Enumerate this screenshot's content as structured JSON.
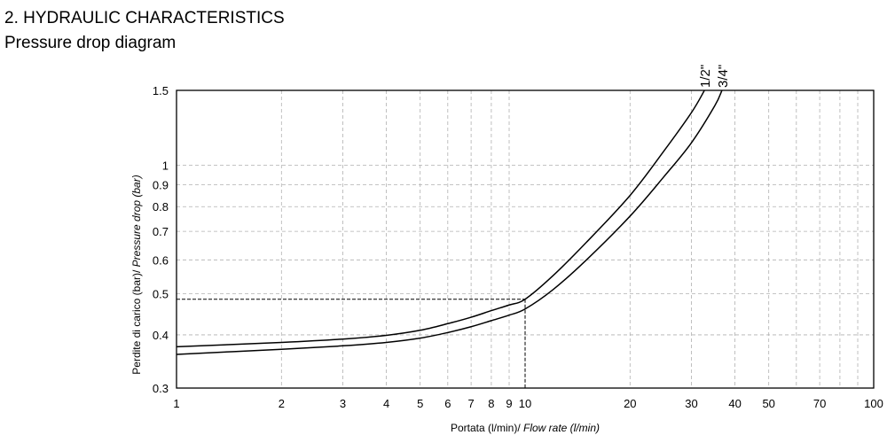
{
  "header": {
    "heading": "2. HYDRAULIC CHARACTERISTICS",
    "subheading": "Pressure drop diagram"
  },
  "chart_data": {
    "type": "line",
    "xlabel_plain": "Portata (l/min)/",
    "xlabel_italic": "Flow rate (l/min)",
    "ylabel_plain": "Perdite di carico (bar)/",
    "ylabel_italic": "Pressure drop (bar)",
    "x_scale": "log",
    "y_scale": "log",
    "xlim": [
      1,
      100
    ],
    "ylim": [
      0.3,
      1.5
    ],
    "x_ticks": [
      1,
      2,
      3,
      4,
      5,
      6,
      7,
      8,
      9,
      10,
      20,
      30,
      40,
      50,
      70,
      100
    ],
    "y_ticks": [
      0.3,
      0.4,
      0.5,
      0.6,
      0.7,
      0.8,
      0.9,
      1,
      1.5
    ],
    "x_ticks_with_gridlines": [
      2,
      3,
      4,
      5,
      6,
      7,
      8,
      9,
      20,
      30,
      40,
      50,
      60,
      70,
      80,
      90
    ],
    "grid": true,
    "reference": {
      "x": 10,
      "y": 0.485
    },
    "series": [
      {
        "name": "1/2\"",
        "x": [
          1,
          2,
          3,
          4,
          5,
          6,
          7,
          8,
          9,
          10,
          12,
          15,
          20,
          25,
          30,
          32.7
        ],
        "y": [
          0.375,
          0.384,
          0.391,
          0.399,
          0.41,
          0.425,
          0.44,
          0.456,
          0.47,
          0.485,
          0.55,
          0.66,
          0.85,
          1.08,
          1.33,
          1.5
        ]
      },
      {
        "name": "3/4\"",
        "x": [
          1,
          2,
          3,
          4,
          5,
          6,
          7,
          8,
          9,
          10,
          12,
          15,
          20,
          25,
          30,
          35,
          36.7
        ],
        "y": [
          0.36,
          0.37,
          0.377,
          0.384,
          0.393,
          0.405,
          0.418,
          0.432,
          0.445,
          0.46,
          0.51,
          0.6,
          0.76,
          0.94,
          1.13,
          1.38,
          1.5
        ]
      }
    ],
    "colors": {
      "line": "#000000",
      "grid": "#b0b0b0"
    }
  }
}
